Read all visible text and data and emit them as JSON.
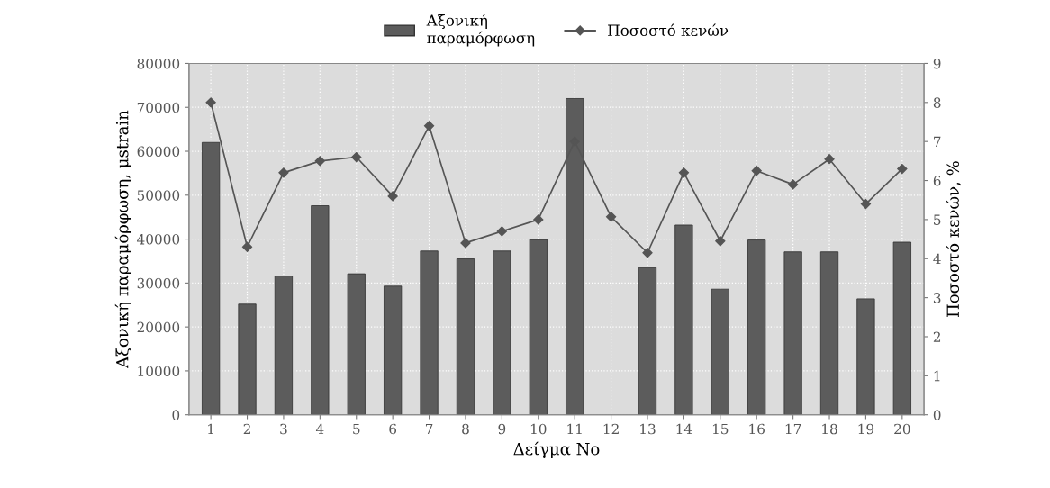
{
  "chart_data": {
    "type": "bar",
    "xlabel": "Δείγμα No",
    "ylabel": "Αξονική παραμόρφωση, μstrain",
    "y2label": "Ποσοστό κενών, %",
    "categories": [
      "1",
      "2",
      "3",
      "4",
      "5",
      "6",
      "7",
      "8",
      "9",
      "10",
      "11",
      "12",
      "13",
      "14",
      "15",
      "16",
      "17",
      "18",
      "19",
      "20"
    ],
    "series": [
      {
        "name": "Αξονική\nπαραμόρφωση",
        "color": "#5c5c5c",
        "values": [
          62000,
          25200,
          31600,
          47600,
          32100,
          29300,
          37300,
          35500,
          37300,
          39900,
          72000,
          null,
          33500,
          43200,
          28600,
          39800,
          37100,
          37100,
          26400,
          39300
        ]
      },
      {
        "name": "Ποσοστό κενών",
        "type": "line",
        "axis": "y2",
        "color": "#555555",
        "marker": "diamond",
        "values": [
          8.0,
          4.3,
          6.2,
          6.5,
          6.6,
          5.6,
          7.4,
          4.4,
          4.7,
          5.0,
          7.0,
          5.07,
          4.15,
          6.2,
          4.45,
          6.25,
          5.9,
          6.55,
          5.4,
          6.3
        ]
      }
    ],
    "ylim": [
      0,
      80000
    ],
    "yticks": [
      0,
      10000,
      20000,
      30000,
      40000,
      50000,
      60000,
      70000,
      80000
    ],
    "y2lim": [
      0,
      9
    ],
    "y2ticks": [
      0,
      1,
      2,
      3,
      4,
      5,
      6,
      7,
      8,
      9
    ],
    "grid": true,
    "legend": "top"
  }
}
